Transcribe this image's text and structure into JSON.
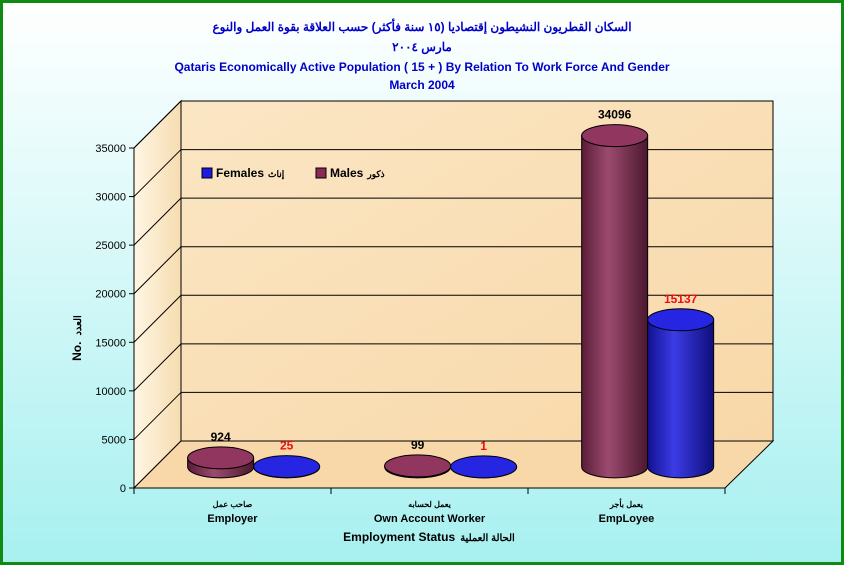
{
  "chart_data": {
    "type": "bar",
    "title_ar": "السكان القطريون النشيطون إقتصاديا (١٥ سنة فأكثر) حسب العلاقة بقوة العمل والنوع",
    "subtitle_ar": "مارس ٢٠٠٤",
    "title": "Qataris Economically Active Population ( 15 + ) By Relation To Work Force And Gender",
    "subtitle": "March 2004",
    "ylabel": "No.",
    "ylabel_ar": "العدد",
    "xlabel": "Employment Status",
    "xlabel_ar": "الحالة العملية",
    "categories": [
      "Employer",
      "Own Account Worker",
      "EmpLoyee"
    ],
    "categories_ar": [
      "صاحب عمل",
      "يعمل لحسابه",
      "يعمل بأجر"
    ],
    "ylim": [
      0,
      35000
    ],
    "yticks": [
      "0",
      "5000",
      "10000",
      "15000",
      "20000",
      "25000",
      "30000",
      "35000"
    ],
    "grid": true,
    "legend_position": "top-left",
    "series": [
      {
        "name": "Males",
        "name_ar": "ذكور",
        "values": [
          924,
          99,
          34096
        ],
        "value_labels": [
          "924",
          "99",
          "34096"
        ],
        "color": "#8b2b55",
        "label_color": "#000000"
      },
      {
        "name": "Females",
        "name_ar": "إناث",
        "values": [
          25,
          1,
          15137
        ],
        "value_labels": [
          "25",
          "1",
          "15137"
        ],
        "color": "#1a1ae0",
        "label_color": "#e81010"
      }
    ]
  },
  "colors": {
    "frame": "#108a10",
    "background_top": "#ffffff",
    "background_bottom": "#a8f0f0",
    "wall": "#f8d8a8",
    "title": "#0000c8"
  }
}
